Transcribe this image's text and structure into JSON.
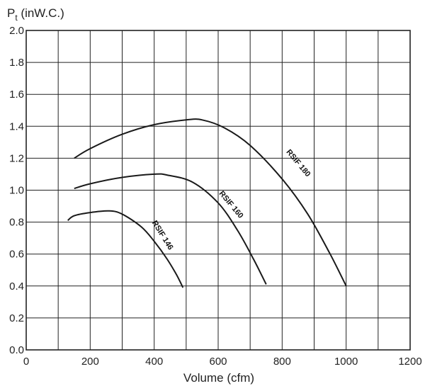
{
  "chart_data": {
    "type": "line",
    "title": "",
    "xlabel": "Volume (cfm)",
    "ylabel_main": "P",
    "ylabel_sub": "t",
    "ylabel_unit": " (inW.C.)",
    "xlim": [
      0,
      1200
    ],
    "ylim": [
      0,
      2.0
    ],
    "x_ticks": [
      0,
      200,
      400,
      600,
      800,
      1000,
      1200
    ],
    "x_tick_labels": [
      "0",
      "200",
      "400",
      "600",
      "800",
      "1000",
      "1200"
    ],
    "y_ticks": [
      0,
      0.2,
      0.4,
      0.6,
      0.8,
      1.0,
      1.2,
      1.4,
      1.6,
      1.8,
      2.0
    ],
    "y_tick_labels": [
      "0.0",
      "0.2",
      "0.4",
      "0.6",
      "0.8",
      "1.0",
      "1.2",
      "1.4",
      "1.6",
      "1.8",
      "2.0"
    ],
    "grid": true,
    "series": [
      {
        "name": "RSIF 146",
        "x": [
          130,
          150,
          200,
          260,
          300,
          360,
          400,
          440,
          470,
          490
        ],
        "y": [
          0.81,
          0.84,
          0.86,
          0.87,
          0.85,
          0.77,
          0.68,
          0.57,
          0.47,
          0.39
        ]
      },
      {
        "name": "RSIF 160",
        "x": [
          150,
          200,
          300,
          400,
          440,
          520,
          600,
          660,
          710,
          750
        ],
        "y": [
          1.01,
          1.04,
          1.08,
          1.1,
          1.095,
          1.05,
          0.92,
          0.75,
          0.57,
          0.41
        ]
      },
      {
        "name": "RSIF 180",
        "x": [
          150,
          200,
          300,
          400,
          500,
          550,
          620,
          700,
          800,
          880,
          950,
          1000
        ],
        "y": [
          1.2,
          1.26,
          1.35,
          1.41,
          1.44,
          1.44,
          1.39,
          1.28,
          1.07,
          0.85,
          0.6,
          0.4
        ]
      }
    ]
  }
}
